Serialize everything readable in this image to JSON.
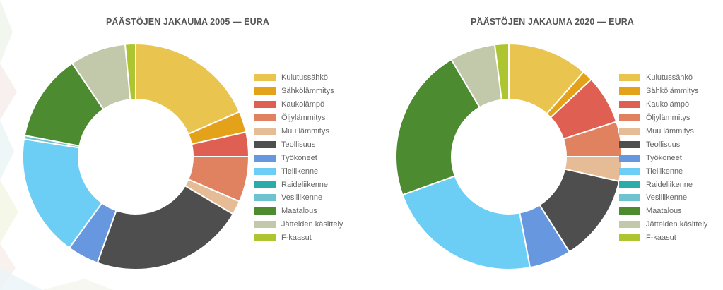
{
  "colors": {
    "Kulutussähkö": "#E9C44E",
    "Sähkölämmitys": "#E3A21A",
    "Kaukolämpö": "#DF6053",
    "Öljylämmitys": "#E0825F",
    "Muu lämmitys": "#E6BC96",
    "Teollisuus": "#4E4E4E",
    "Työkoneet": "#6797DF",
    "Tieliikenne": "#6DCEF5",
    "Raideliikenne": "#2AADAA",
    "Vesiliikenne": "#6EC3D0",
    "Maatalous": "#4D8B31",
    "Jätteiden käsittely": "#C2C9AB",
    "F-kaasut": "#ADC531"
  },
  "chart_data": [
    {
      "type": "pie",
      "donut": true,
      "title": "PÄÄSTÖJEN JAKAUMA 2005 — EURA",
      "legend_position": "right",
      "categories": [
        "Kulutussähkö",
        "Sähkölämmitys",
        "Kaukolämpö",
        "Öljylämmitys",
        "Muu lämmitys",
        "Teollisuus",
        "Työkoneet",
        "Tieliikenne",
        "Raideliikenne",
        "Vesiliikenne",
        "Maatalous",
        "Jätteiden käsittely",
        "F-kaasut"
      ],
      "values": [
        18.5,
        3.0,
        3.5,
        6.5,
        2.0,
        22.0,
        4.5,
        17.5,
        0.0,
        0.5,
        12.5,
        8.0,
        1.5
      ]
    },
    {
      "type": "pie",
      "donut": true,
      "title": "PÄÄSTÖJEN JAKAUMA 2020 — EURA",
      "legend_position": "right",
      "categories": [
        "Kulutussähkö",
        "Sähkölämmitys",
        "Kaukolämpö",
        "Öljylämmitys",
        "Muu lämmitys",
        "Teollisuus",
        "Työkoneet",
        "Tieliikenne",
        "Raideliikenne",
        "Vesiliikenne",
        "Maatalous",
        "Jätteiden käsittely",
        "F-kaasut"
      ],
      "values": [
        11.5,
        1.5,
        7.0,
        5.0,
        3.5,
        12.5,
        6.0,
        22.5,
        0.0,
        0.0,
        22.0,
        6.5,
        2.0
      ]
    }
  ]
}
